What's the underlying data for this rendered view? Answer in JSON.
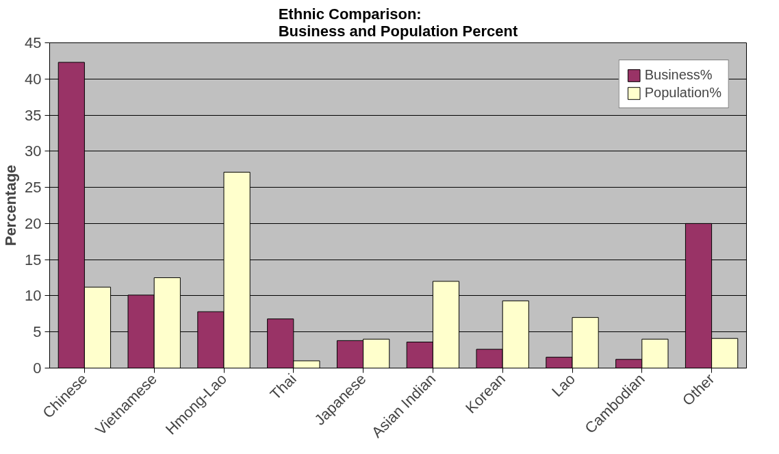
{
  "chart_data": {
    "type": "bar",
    "title": "Ethnic Comparison:\nBusiness and Population Percent",
    "ylabel": "Percentage",
    "categories": [
      "Chinese",
      "Vietnamese",
      "Hmong-Lao",
      "Thai",
      "Japanese",
      "Asian Indian",
      "Korean",
      "Lao",
      "Cambodian",
      "Other"
    ],
    "series": [
      {
        "name": "Business%",
        "color": "#993366",
        "values": [
          42.3,
          10.1,
          7.8,
          6.8,
          3.8,
          3.6,
          2.6,
          1.5,
          1.2,
          20.0
        ]
      },
      {
        "name": "Population%",
        "color": "#ffffcc",
        "values": [
          11.2,
          12.5,
          27.1,
          1.0,
          4.0,
          12.0,
          9.3,
          7.0,
          4.0,
          4.1
        ]
      }
    ],
    "ylim": [
      0,
      45
    ],
    "yticks": [
      0,
      5,
      10,
      15,
      20,
      25,
      30,
      35,
      40,
      45
    ],
    "grid": "y",
    "legend": "top right"
  }
}
